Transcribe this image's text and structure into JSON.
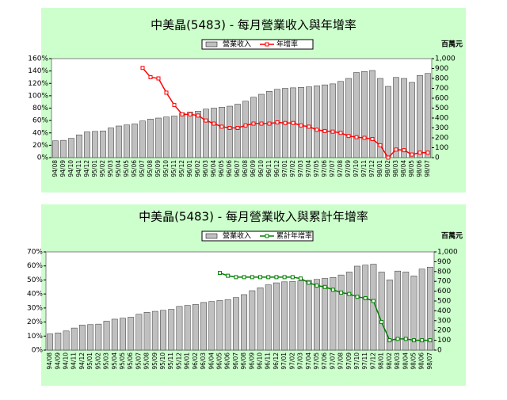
{
  "chart_data": [
    {
      "type": "bar_line",
      "title": "中美晶(5483) - 每月營業收入與年增率",
      "y2_label": "百萬元",
      "grid": false,
      "categories": [
        "94/08",
        "94/09",
        "94/10",
        "94/11",
        "94/12",
        "95/01",
        "95/02",
        "95/03",
        "95/04",
        "95/05",
        "95/06",
        "95/07",
        "95/08",
        "95/09",
        "95/10",
        "95/11",
        "95/12",
        "96/01",
        "96/02",
        "96/03",
        "96/04",
        "96/05",
        "96/06",
        "96/07",
        "96/08",
        "96/09",
        "96/10",
        "96/11",
        "96/12",
        "97/01",
        "97/02",
        "97/03",
        "97/04",
        "97/05",
        "97/06",
        "97/07",
        "97/08",
        "97/09",
        "97/10",
        "97/11",
        "97/12",
        "98/01",
        "98/02",
        "98/03",
        "98/04",
        "98/05",
        "98/06",
        "98/07"
      ],
      "ylim": [
        0,
        160
      ],
      "yticks": [
        {
          "value": 0,
          "label": "0%"
        },
        {
          "value": 20,
          "label": "20%"
        },
        {
          "value": 40,
          "label": "40%"
        },
        {
          "value": 60,
          "label": "60%"
        },
        {
          "value": 80,
          "label": "80%"
        },
        {
          "value": 100,
          "label": "100%"
        },
        {
          "value": 120,
          "label": "120%"
        },
        {
          "value": 140,
          "label": "140%"
        },
        {
          "value": 160,
          "label": "160%"
        }
      ],
      "y2lim": [
        0,
        1000
      ],
      "y2ticks": [
        0,
        100,
        200,
        300,
        400,
        500,
        600,
        700,
        800,
        900,
        {
          "value": 1000,
          "label": "1,000"
        }
      ],
      "series": [
        {
          "name": "營業收入",
          "type": "bar",
          "axis": "y2",
          "color": "#c0c0c0",
          "values": [
            170,
            175,
            195,
            230,
            260,
            265,
            270,
            300,
            320,
            330,
            340,
            370,
            390,
            400,
            410,
            420,
            450,
            460,
            470,
            490,
            500,
            510,
            520,
            540,
            570,
            610,
            640,
            670,
            690,
            700,
            705,
            710,
            715,
            725,
            735,
            745,
            770,
            800,
            860,
            870,
            880,
            800,
            720,
            810,
            800,
            760,
            830,
            850
          ]
        },
        {
          "name": "年增率",
          "type": "line",
          "axis": "y",
          "color": "#ff0000",
          "values": [
            null,
            null,
            null,
            null,
            null,
            null,
            null,
            null,
            null,
            null,
            null,
            145,
            130,
            128,
            105,
            85,
            70,
            70,
            68,
            60,
            55,
            50,
            48,
            48,
            52,
            55,
            55,
            55,
            57,
            56,
            56,
            52,
            50,
            45,
            43,
            42,
            40,
            35,
            33,
            32,
            30,
            20,
            0,
            13,
            12,
            5,
            8,
            8
          ]
        }
      ]
    },
    {
      "type": "bar_line",
      "title": "中美晶(5483) - 每月營業收入與累計年增率",
      "y2_label": "百萬元",
      "grid": false,
      "categories": [
        "94/08",
        "94/09",
        "94/10",
        "94/11",
        "94/12",
        "95/01",
        "95/02",
        "95/03",
        "95/04",
        "95/05",
        "95/06",
        "95/07",
        "95/08",
        "95/09",
        "95/10",
        "95/11",
        "95/12",
        "96/01",
        "96/02",
        "96/03",
        "96/04",
        "96/05",
        "96/06",
        "96/07",
        "96/08",
        "96/09",
        "96/10",
        "96/11",
        "96/12",
        "97/01",
        "97/02",
        "97/03",
        "97/04",
        "97/05",
        "97/06",
        "97/07",
        "97/08",
        "97/09",
        "97/10",
        "97/11",
        "97/12",
        "98/01",
        "98/02",
        "98/03",
        "98/04",
        "98/05",
        "98/06",
        "98/07"
      ],
      "ylim": [
        0,
        70
      ],
      "yticks": [
        {
          "value": 0,
          "label": "0%"
        },
        {
          "value": 10,
          "label": "10%"
        },
        {
          "value": 20,
          "label": "20%"
        },
        {
          "value": 30,
          "label": "30%"
        },
        {
          "value": 40,
          "label": "40%"
        },
        {
          "value": 50,
          "label": "50%"
        },
        {
          "value": 60,
          "label": "60%"
        },
        {
          "value": 70,
          "label": "70%"
        }
      ],
      "y2lim": [
        0,
        1000
      ],
      "y2ticks": [
        0,
        100,
        200,
        300,
        400,
        500,
        600,
        700,
        800,
        900,
        {
          "value": 1000,
          "label": "1,000"
        }
      ],
      "series": [
        {
          "name": "營業收入",
          "type": "bar",
          "axis": "y2",
          "color": "#c0c0c0",
          "values": [
            165,
            175,
            195,
            225,
            255,
            260,
            265,
            295,
            315,
            325,
            335,
            365,
            385,
            395,
            405,
            415,
            445,
            455,
            465,
            485,
            495,
            505,
            515,
            535,
            565,
            605,
            635,
            665,
            685,
            695,
            700,
            705,
            710,
            720,
            730,
            740,
            765,
            795,
            855,
            865,
            875,
            795,
            715,
            805,
            795,
            755,
            825,
            845
          ]
        },
        {
          "name": "累計年增率",
          "type": "line",
          "axis": "y",
          "color": "#008000",
          "values": [
            null,
            null,
            null,
            null,
            null,
            null,
            null,
            null,
            null,
            null,
            null,
            null,
            null,
            null,
            null,
            null,
            null,
            null,
            null,
            null,
            null,
            55,
            53,
            52,
            52,
            52,
            52,
            52,
            52,
            52,
            52,
            51,
            48,
            46,
            45,
            43,
            41,
            40,
            38,
            37,
            35,
            20,
            7,
            8,
            8,
            7,
            7,
            7
          ]
        }
      ]
    }
  ]
}
